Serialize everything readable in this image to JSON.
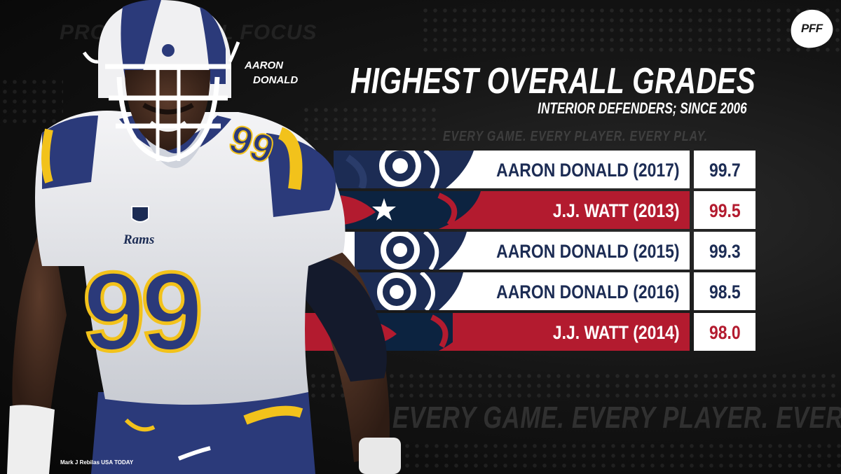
{
  "background": {
    "watermark": "PRO FOOTBALL FOCUS",
    "slogan_large": "EVERY GAME. EVERY PLAYER. EVERY PLAY.",
    "slogan_small": "EVERY GAME. EVERY PLAYER. EVERY PLAY."
  },
  "logo": {
    "text": "PFF"
  },
  "header": {
    "title": "HIGHEST OVERALL GRADES",
    "subtitle": "INTERIOR DEFENDERS; SINCE 2006"
  },
  "player": {
    "name_line1": "AARON",
    "name_line2": "DONALD",
    "jersey_number": "99",
    "team_wordmark": "Rams"
  },
  "photo_credit": "Mark J Rebilas USA TODAY",
  "colors": {
    "rams_navy": "#1c2c54",
    "rams_gold": "#f2c21b",
    "texans_red": "#b31b2f",
    "texans_navy": "#0c2340",
    "white": "#ffffff"
  },
  "rankings": [
    {
      "label": "AARON DONALD (2017)",
      "grade": "99.7",
      "team": "rams"
    },
    {
      "label": "J.J. WATT (2013)",
      "grade": "99.5",
      "team": "texans"
    },
    {
      "label": "AARON DONALD (2015)",
      "grade": "99.3",
      "team": "rams"
    },
    {
      "label": "AARON DONALD (2016)",
      "grade": "98.5",
      "team": "rams"
    },
    {
      "label": "J.J. WATT (2014)",
      "grade": "98.0",
      "team": "texans"
    }
  ]
}
